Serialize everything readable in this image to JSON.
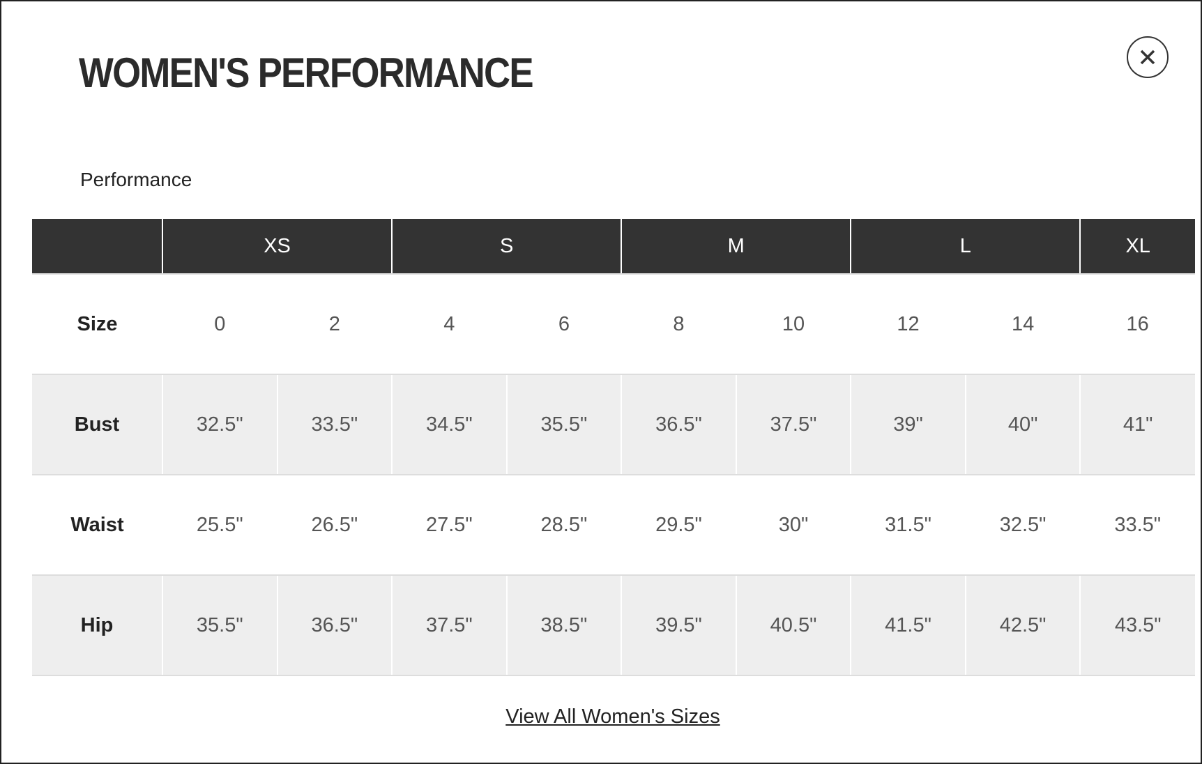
{
  "modal": {
    "title": "WOMEN'S PERFORMANCE",
    "subtitle": "Performance",
    "table": {
      "groups": [
        "XS",
        "S",
        "M",
        "L",
        "XL"
      ],
      "rows": [
        [
          "Size",
          "0",
          "2",
          "4",
          "6",
          "8",
          "10",
          "12",
          "14",
          "16"
        ],
        [
          "Bust",
          "32.5\"",
          "33.5\"",
          "34.5\"",
          "35.5\"",
          "36.5\"",
          "37.5\"",
          "39\"",
          "40\"",
          "41\""
        ],
        [
          "Waist",
          "25.5\"",
          "26.5\"",
          "27.5\"",
          "28.5\"",
          "29.5\"",
          "30\"",
          "31.5\"",
          "32.5\"",
          "33.5\""
        ],
        [
          "Hip",
          "35.5\"",
          "36.5\"",
          "37.5\"",
          "38.5\"",
          "39.5\"",
          "40.5\"",
          "41.5\"",
          "42.5\"",
          "43.5\""
        ]
      ]
    },
    "link": "View All Women's Sizes"
  }
}
